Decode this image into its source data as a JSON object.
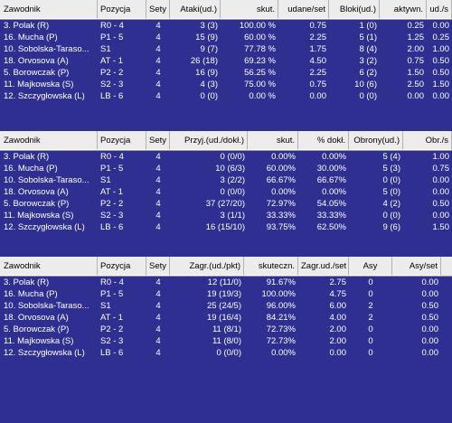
{
  "tables": [
    {
      "columns": [
        "Zawodnik",
        "Pozycja",
        "Sety",
        "Ataki(ud.)",
        "skut.",
        "udane/set",
        "Bloki(ud.)",
        "aktywn.",
        "ud./s"
      ],
      "rows": [
        [
          "3. Polak (R)",
          "R0 - 4",
          "4",
          "3 (3)",
          "100.00 %",
          "0.75",
          "1 (0)",
          "0.25",
          "0.00"
        ],
        [
          "16. Mucha (P)",
          "P1 - 5",
          "4",
          "15 (9)",
          "60.00 %",
          "2.25",
          "5 (1)",
          "1.25",
          "0.25"
        ],
        [
          "10. Sobolska-Taraso...",
          "S1",
          "4",
          "9 (7)",
          "77.78 %",
          "1.75",
          "8 (4)",
          "2.00",
          "1.00"
        ],
        [
          "18. Orvosova (A)",
          "AT - 1",
          "4",
          "26 (18)",
          "69.23 %",
          "4.50",
          "3 (2)",
          "0.75",
          "0.50"
        ],
        [
          "5. Borowczak (P)",
          "P2 - 2",
          "4",
          "16 (9)",
          "56.25 %",
          "2.25",
          "6 (2)",
          "1.50",
          "0.50"
        ],
        [
          "11. Majkowska (S)",
          "S2 - 3",
          "4",
          "4 (3)",
          "75.00 %",
          "0.75",
          "10 (6)",
          "2.50",
          "1.50"
        ],
        [
          "12. Szczygłowska (L)",
          "LB - 6",
          "4",
          "0 (0)",
          "0.00 %",
          "0.00",
          "0 (0)",
          "0.00",
          "0.00"
        ]
      ]
    },
    {
      "columns": [
        "Zawodnik",
        "Pozycja",
        "Sety",
        "Przyj.(ud./dokł.)",
        "skut.",
        "% dokł.",
        "Obrony(ud.)",
        "Obr./s"
      ],
      "rows": [
        [
          "3. Polak (R)",
          "R0 - 4",
          "4",
          "0 (0/0)",
          "0.00%",
          "0.00%",
          "5 (4)",
          "1.00"
        ],
        [
          "16. Mucha (P)",
          "P1 - 5",
          "4",
          "10 (6/3)",
          "60.00%",
          "30.00%",
          "5 (3)",
          "0.75"
        ],
        [
          "10. Sobolska-Taraso...",
          "S1",
          "4",
          "3 (2/2)",
          "66.67%",
          "66.67%",
          "0 (0)",
          "0.00"
        ],
        [
          "18. Orvosova (A)",
          "AT - 1",
          "4",
          "0 (0/0)",
          "0.00%",
          "0.00%",
          "5 (0)",
          "0.00"
        ],
        [
          "5. Borowczak (P)",
          "P2 - 2",
          "4",
          "37 (27/20)",
          "72.97%",
          "54.05%",
          "4 (2)",
          "0.50"
        ],
        [
          "11. Majkowska (S)",
          "S2 - 3",
          "4",
          "3 (1/1)",
          "33.33%",
          "33.33%",
          "0 (0)",
          "0.00"
        ],
        [
          "12. Szczygłowska (L)",
          "LB - 6",
          "4",
          "16 (15/10)",
          "93.75%",
          "62.50%",
          "9 (6)",
          "1.50"
        ]
      ]
    },
    {
      "columns": [
        "Zawodnik",
        "Pozycja",
        "Sety",
        "Zagr.(ud./pkt)",
        "skuteczn.",
        "Zagr.ud./set",
        "Asy",
        "Asy/set"
      ],
      "rows": [
        [
          "3. Polak (R)",
          "R0 - 4",
          "4",
          "12 (11/0)",
          "91.67%",
          "2.75",
          "0",
          "0.00"
        ],
        [
          "16. Mucha (P)",
          "P1 - 5",
          "4",
          "19 (19/3)",
          "100.00%",
          "4.75",
          "0",
          "0.00"
        ],
        [
          "10. Sobolska-Taraso...",
          "S1",
          "4",
          "25 (24/5)",
          "96.00%",
          "6.00",
          "2",
          "0.50"
        ],
        [
          "18. Orvosova (A)",
          "AT - 1",
          "4",
          "19 (16/4)",
          "84.21%",
          "4.00",
          "2",
          "0.50"
        ],
        [
          "5. Borowczak (P)",
          "P2 - 2",
          "4",
          "11 (8/1)",
          "72.73%",
          "2.00",
          "0",
          "0.00"
        ],
        [
          "11. Majkowska (S)",
          "S2 - 3",
          "4",
          "11 (8/0)",
          "72.73%",
          "2.00",
          "0",
          "0.00"
        ],
        [
          "12. Szczygłowska (L)",
          "LB - 6",
          "4",
          "0 (0/0)",
          "0.00%",
          "0.00",
          "0",
          "0.00"
        ]
      ]
    }
  ],
  "colors": {
    "background": "#2f2f92",
    "header_background": "#ececec",
    "header_text": "#000000",
    "cell_text": "#ffffff"
  }
}
